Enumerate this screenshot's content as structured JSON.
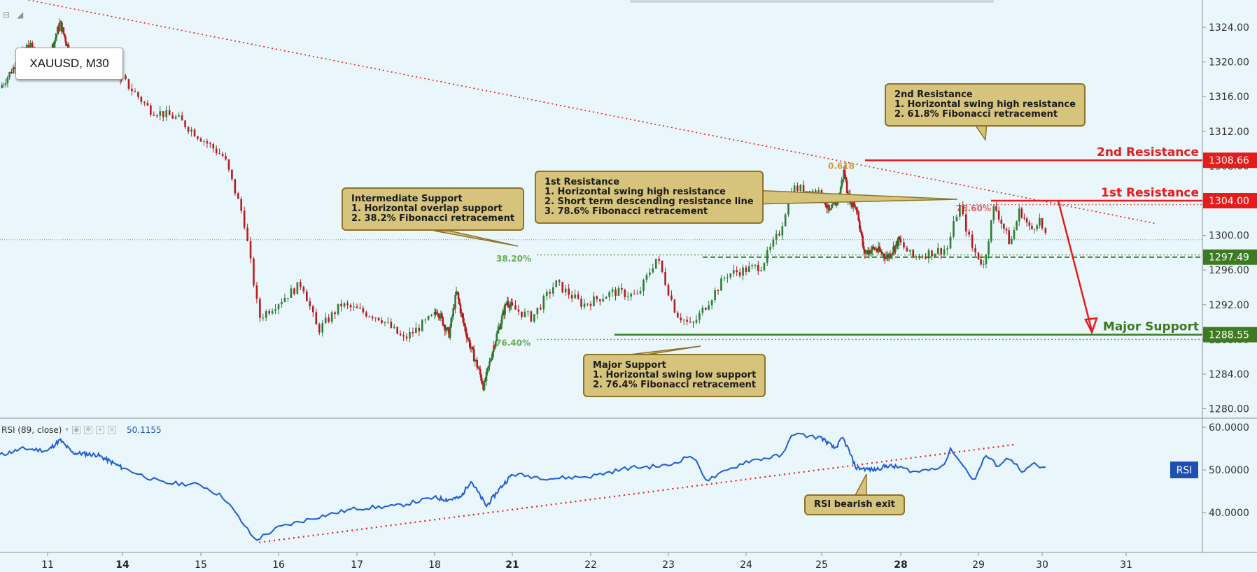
{
  "symbol_label": "XAUUSD, M30",
  "colors": {
    "background": "#e9f6fb",
    "up_candle": "#2e7d32",
    "down_candle": "#b71c1c",
    "resistance": "#e81b1b",
    "support": "#3d7a22",
    "rsi_line": "#1d5cd3",
    "callout_fill": "#d6c37c",
    "callout_border": "#8d7328"
  },
  "chart_data": [
    {
      "type": "candlestick",
      "title": "XAUUSD, M30",
      "x_tick_labels": [
        "11",
        "14",
        "15",
        "16",
        "17",
        "18",
        "21",
        "22",
        "23",
        "24",
        "25",
        "28",
        "29",
        "30",
        "31"
      ],
      "y_tick_labels": [
        "1324.00",
        "1320.00",
        "1316.00",
        "1312.00",
        "1308.00",
        "1304.00",
        "1300.00",
        "1296.00",
        "1292.00",
        "1288.00",
        "1284.00",
        "1280.00"
      ],
      "ylim": [
        1278.0,
        1326.0
      ],
      "close_path": [
        {
          "day": 10.0,
          "price": 1317.0
        },
        {
          "day": 10.6,
          "price": 1322.0
        },
        {
          "day": 11.0,
          "price": 1320.0
        },
        {
          "day": 11.5,
          "price": 1324.5
        },
        {
          "day": 11.9,
          "price": 1321.0
        },
        {
          "day": 12.5,
          "price": 1320.0
        },
        {
          "day": 13.4,
          "price": 1320.5
        },
        {
          "day": 14.0,
          "price": 1318.0
        },
        {
          "day": 14.35,
          "price": 1314.5
        },
        {
          "day": 14.7,
          "price": 1313.5
        },
        {
          "day": 15.3,
          "price": 1309.0
        },
        {
          "day": 15.55,
          "price": 1302.0
        },
        {
          "day": 15.75,
          "price": 1290.5
        },
        {
          "day": 16.3,
          "price": 1294.5
        },
        {
          "day": 16.5,
          "price": 1289.0
        },
        {
          "day": 16.8,
          "price": 1292.0
        },
        {
          "day": 17.3,
          "price": 1290.5
        },
        {
          "day": 17.6,
          "price": 1288.0
        },
        {
          "day": 18.1,
          "price": 1291.5
        },
        {
          "day": 18.55,
          "price": 1288.5
        },
        {
          "day": 18.85,
          "price": 1293.5
        },
        {
          "day": 19.1,
          "price": 1290.0
        },
        {
          "day": 19.4,
          "price": 1287.0
        },
        {
          "day": 19.7,
          "price": 1284.5
        },
        {
          "day": 19.9,
          "price": 1282.5
        },
        {
          "day": 20.3,
          "price": 1287.5
        },
        {
          "day": 20.8,
          "price": 1292.5
        },
        {
          "day": 21.25,
          "price": 1290.5
        },
        {
          "day": 21.55,
          "price": 1294.5
        },
        {
          "day": 21.9,
          "price": 1292.0
        },
        {
          "day": 22.3,
          "price": 1293.5
        },
        {
          "day": 22.6,
          "price": 1293.0
        },
        {
          "day": 22.85,
          "price": 1297.5
        },
        {
          "day": 23.1,
          "price": 1291.0
        },
        {
          "day": 23.3,
          "price": 1289.5
        },
        {
          "day": 23.75,
          "price": 1295.5
        },
        {
          "day": 24.2,
          "price": 1296.5
        },
        {
          "day": 24.45,
          "price": 1300.5
        },
        {
          "day": 24.6,
          "price": 1305.5
        },
        {
          "day": 25.0,
          "price": 1305.0
        },
        {
          "day": 25.3,
          "price": 1302.5
        },
        {
          "day": 25.65,
          "price": 1304.5
        },
        {
          "day": 25.85,
          "price": 1307.5
        },
        {
          "day": 26.0,
          "price": 1304.5
        },
        {
          "day": 26.35,
          "price": 1303.0
        },
        {
          "day": 26.6,
          "price": 1298.0
        },
        {
          "day": 27.0,
          "price": 1298.5
        },
        {
          "day": 27.5,
          "price": 1297.5
        },
        {
          "day": 27.95,
          "price": 1299.5
        },
        {
          "day": 28.15,
          "price": 1297.5
        },
        {
          "day": 28.6,
          "price": 1298.5
        },
        {
          "day": 28.75,
          "price": 1303.5
        },
        {
          "day": 28.92,
          "price": 1298.5
        },
        {
          "day": 29.08,
          "price": 1296.5
        },
        {
          "day": 29.25,
          "price": 1303.5
        },
        {
          "day": 29.5,
          "price": 1299.0
        },
        {
          "day": 29.65,
          "price": 1303.0
        },
        {
          "day": 29.82,
          "price": 1300.5
        },
        {
          "day": 29.95,
          "price": 1302.0
        },
        {
          "day": 30.05,
          "price": 1299.5
        }
      ],
      "levels": [
        {
          "name": "2nd Resistance",
          "price": 1308.66,
          "label": "1308.66"
        },
        {
          "name": "1st Resistance",
          "price": 1304.0,
          "label": "1304.00"
        },
        {
          "name": "Intermediate",
          "price": 1297.49,
          "label": "1297.49"
        },
        {
          "name": "Major Support",
          "price": 1288.55,
          "label": "1288.55"
        }
      ],
      "last_price": 1299.5,
      "fib_labels": [
        "0.618",
        "78.60%",
        "38.20%",
        "76.40%"
      ],
      "level_titles": {
        "second_resistance": "2nd Resistance",
        "first_resistance": "1st Resistance",
        "major_support": "Major Support"
      }
    },
    {
      "type": "line",
      "title": "RSI (89, close)",
      "current_value": "50.1155",
      "y_tick_labels": [
        "60.0000",
        "50.0000",
        "40.0000"
      ],
      "ylim": [
        31.0,
        63.0
      ],
      "series": [
        {
          "name": "RSI",
          "points": [
            {
              "day": 10.0,
              "value": 53.5
            },
            {
              "day": 10.5,
              "value": 55.0
            },
            {
              "day": 11.0,
              "value": 54.5
            },
            {
              "day": 11.5,
              "value": 57.0
            },
            {
              "day": 12.0,
              "value": 54.0
            },
            {
              "day": 13.0,
              "value": 53.5
            },
            {
              "day": 14.0,
              "value": 50.5
            },
            {
              "day": 14.5,
              "value": 47.0
            },
            {
              "day": 15.0,
              "value": 46.5
            },
            {
              "day": 15.3,
              "value": 43.5
            },
            {
              "day": 15.5,
              "value": 38.5
            },
            {
              "day": 15.7,
              "value": 33.5
            },
            {
              "day": 16.0,
              "value": 36.5
            },
            {
              "day": 16.5,
              "value": 39.0
            },
            {
              "day": 17.0,
              "value": 41.0
            },
            {
              "day": 17.5,
              "value": 41.5
            },
            {
              "day": 18.0,
              "value": 43.5
            },
            {
              "day": 18.5,
              "value": 43.0
            },
            {
              "day": 19.0,
              "value": 43.5
            },
            {
              "day": 19.4,
              "value": 47.5
            },
            {
              "day": 19.7,
              "value": 44.5
            },
            {
              "day": 20.0,
              "value": 41.5
            },
            {
              "day": 20.5,
              "value": 45.5
            },
            {
              "day": 21.0,
              "value": 49.0
            },
            {
              "day": 21.5,
              "value": 48.0
            },
            {
              "day": 22.0,
              "value": 48.5
            },
            {
              "day": 22.5,
              "value": 50.5
            },
            {
              "day": 23.0,
              "value": 51.0
            },
            {
              "day": 23.3,
              "value": 53.5
            },
            {
              "day": 23.5,
              "value": 47.5
            },
            {
              "day": 24.0,
              "value": 52.0
            },
            {
              "day": 24.5,
              "value": 53.5
            },
            {
              "day": 24.6,
              "value": 58.5
            },
            {
              "day": 25.0,
              "value": 57.5
            },
            {
              "day": 25.5,
              "value": 55.0
            },
            {
              "day": 25.8,
              "value": 57.5
            },
            {
              "day": 26.0,
              "value": 55.0
            },
            {
              "day": 26.3,
              "value": 50.5
            },
            {
              "day": 27.0,
              "value": 50.0
            },
            {
              "day": 27.5,
              "value": 51.0
            },
            {
              "day": 28.0,
              "value": 50.5
            },
            {
              "day": 28.2,
              "value": 49.5
            },
            {
              "day": 28.55,
              "value": 51.0
            },
            {
              "day": 28.65,
              "value": 55.0
            },
            {
              "day": 28.8,
              "value": 51.0
            },
            {
              "day": 28.95,
              "value": 47.5
            },
            {
              "day": 29.1,
              "value": 53.5
            },
            {
              "day": 29.3,
              "value": 51.0
            },
            {
              "day": 29.5,
              "value": 53.0
            },
            {
              "day": 29.7,
              "value": 49.0
            },
            {
              "day": 29.85,
              "value": 51.5
            },
            {
              "day": 30.05,
              "value": 50.1
            }
          ]
        }
      ],
      "trendline": {
        "from": {
          "day": 15.75,
          "value": 33.0
        },
        "to": {
          "day": 29.6,
          "value": 56.0
        }
      },
      "badge": "RSI"
    }
  ],
  "callouts": {
    "second_resistance": {
      "title": "2nd Resistance",
      "lines": [
        "1. Horizontal swing high resistance",
        "2. 61.8% Fibonacci retracement"
      ]
    },
    "first_resistance": {
      "title": "1st Resistance",
      "lines": [
        "1. Horizontal swing high resistance",
        "2. Short term descending resistance line",
        "3. 78.6% Fibonacci retracement"
      ]
    },
    "intermediate_support": {
      "title": "Intermediate Support",
      "lines": [
        "1. Horizontal overlap support",
        "2. 38.2% Fibonacci retracement"
      ]
    },
    "major_support": {
      "title": "Major Support",
      "lines": [
        "1. Horizontal swing low support",
        "2. 76.4% Fibonacci retracement"
      ]
    },
    "rsi_exit": {
      "title": "RSI bearish exit",
      "lines": []
    }
  }
}
